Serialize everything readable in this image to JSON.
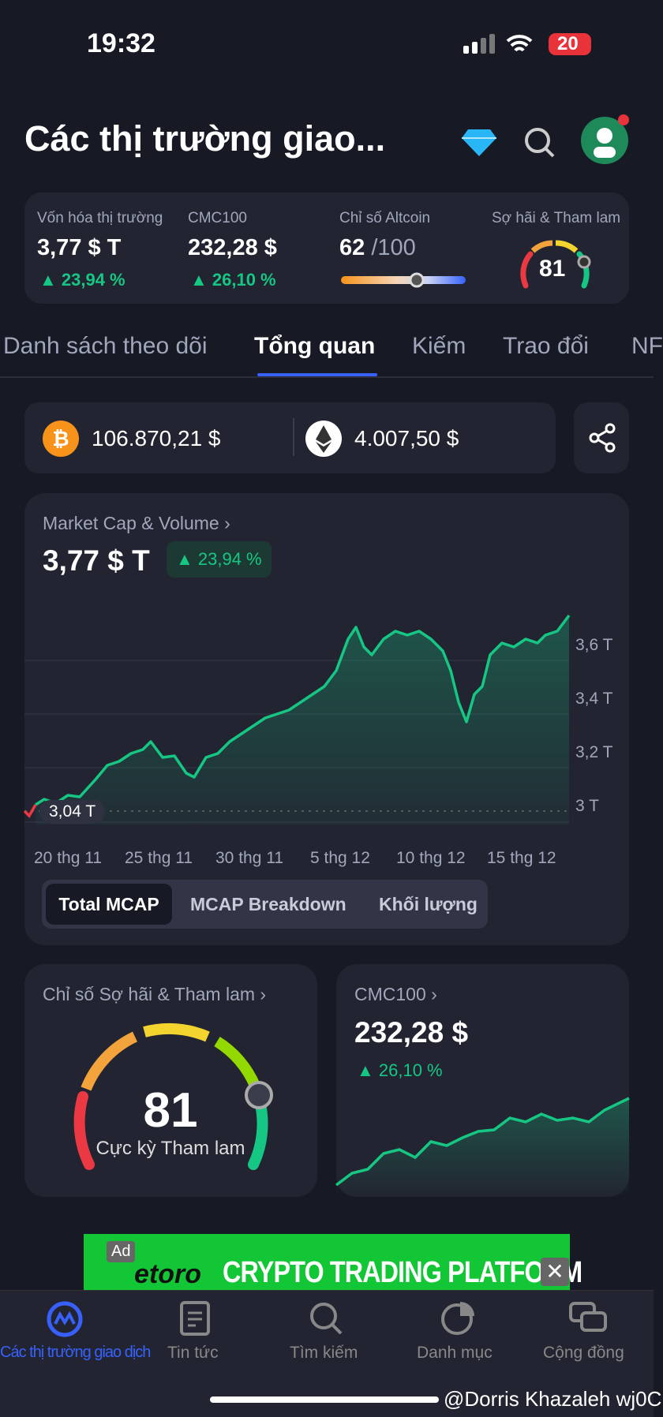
{
  "status": {
    "time": "19:32",
    "battery": "20"
  },
  "header": {
    "title": "Các thị trường giao..."
  },
  "stats": [
    {
      "label": "Vốn hóa thị trường",
      "value": "3,77 $ T",
      "change": "23,94 %"
    },
    {
      "label": "CMC100",
      "value": "232,28 $",
      "change": "26,10 %"
    },
    {
      "label": "Chỉ số Altcoin",
      "value": "62",
      "suffix": "/100"
    },
    {
      "label": "Sợ hãi & Tham lam",
      "value": "81"
    }
  ],
  "tabs": [
    "Danh sách theo dõi",
    "Tổng quan",
    "Kiếm",
    "Trao đổi",
    "NF"
  ],
  "prices": {
    "btc": "106.870,21 $",
    "eth": "4.007,50 $"
  },
  "market": {
    "title": "Market Cap & Volume",
    "value": "3,77 $ T",
    "change": "23,94 %",
    "yticks": [
      "3,6 T",
      "3,4 T",
      "3,2 T",
      "3 T"
    ],
    "current": "3,04 T",
    "xticks": [
      "20 thg 11",
      "25 thg 11",
      "30 thg 11",
      "5 thg 12",
      "10 thg 12",
      "15 thg 12"
    ],
    "buttons": [
      "Total MCAP",
      "MCAP Breakdown",
      "Khối lượng"
    ]
  },
  "fear": {
    "title": "Chỉ số Sợ hãi & Tham lam",
    "value": "81",
    "label": "Cực kỳ Tham lam"
  },
  "cmc": {
    "title": "CMC100",
    "value": "232,28 $",
    "change": "26,10 %"
  },
  "ad": {
    "tag": "Ad",
    "brand": "etoro",
    "text": "CRYPTO TRADING PLATFORM"
  },
  "nav": [
    "Các thị trường giao dịch",
    "Tin tức",
    "Tìm kiếm",
    "Danh mục",
    "Cộng đồng"
  ],
  "watermark": "@Dorris Khazaleh wj0C"
}
